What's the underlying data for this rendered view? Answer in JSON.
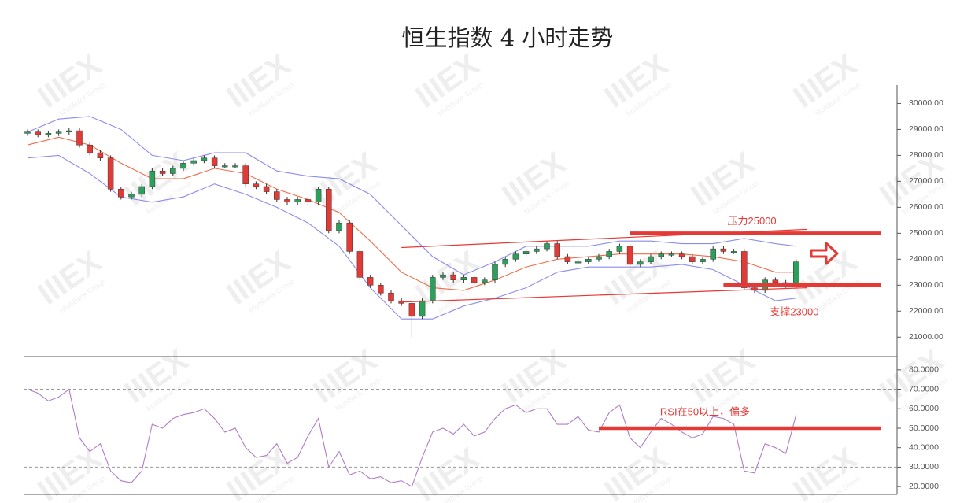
{
  "chart_data": [
    {
      "type": "candlestick",
      "title": "恒生指数 4 小时走势",
      "categories": [
        null,
        null,
        null,
        null,
        null,
        null,
        null,
        null,
        null,
        null,
        null,
        null,
        null,
        null,
        null,
        null,
        null,
        null,
        null,
        null,
        null,
        null,
        null,
        null,
        null,
        null,
        null,
        null,
        null,
        null,
        null,
        null,
        null,
        null,
        null,
        null,
        null,
        null,
        null,
        null,
        null,
        null,
        null,
        null,
        null,
        null,
        null,
        null,
        null,
        null,
        null,
        null,
        null,
        null,
        null,
        null,
        null,
        null,
        null,
        null,
        null,
        null,
        null,
        null,
        null,
        null,
        null,
        null,
        null,
        null,
        null,
        null,
        null,
        null,
        null
      ],
      "open": [
        28850,
        28900,
        28800,
        28850,
        28900,
        28950,
        28400,
        28100,
        27900,
        26700,
        26400,
        26500,
        26800,
        27400,
        27300,
        27500,
        27700,
        27800,
        27900,
        27600,
        27600,
        27600,
        26900,
        26800,
        26600,
        26300,
        26200,
        26300,
        26200,
        26700,
        25100,
        25400,
        24300,
        23300,
        23000,
        22700,
        22400,
        22300,
        21800,
        22400,
        23300,
        23400,
        23200,
        23300,
        23100,
        23200,
        23800,
        24000,
        24200,
        24300,
        24400,
        24600,
        24100,
        23900,
        23900,
        24000,
        24100,
        24300,
        24500,
        23800,
        23900,
        24100,
        24200,
        24200,
        24100,
        23900,
        24000,
        24400,
        24300,
        24300,
        22900,
        22800,
        23200,
        23100,
        23000
      ],
      "high": [
        29000,
        29000,
        28950,
        29000,
        29050,
        29050,
        28500,
        28200,
        28000,
        26800,
        26600,
        26900,
        27500,
        27500,
        27600,
        27800,
        27900,
        28000,
        28000,
        27700,
        27700,
        27700,
        27000,
        26900,
        26700,
        26400,
        26400,
        26400,
        26800,
        26800,
        25500,
        25500,
        24400,
        23400,
        23100,
        22800,
        22500,
        22400,
        22500,
        23400,
        23500,
        23500,
        23400,
        23400,
        23300,
        23900,
        24100,
        24300,
        24400,
        24500,
        24700,
        24700,
        24200,
        24000,
        24100,
        24200,
        24400,
        24600,
        24600,
        24000,
        24200,
        24300,
        24300,
        24300,
        24200,
        24100,
        24500,
        24500,
        24400,
        24400,
        23000,
        23300,
        23300,
        23200,
        24000
      ],
      "low": [
        28750,
        28700,
        28700,
        28750,
        28800,
        28300,
        28000,
        27800,
        26600,
        26300,
        26300,
        26400,
        26700,
        27200,
        27200,
        27400,
        27600,
        27700,
        27500,
        27500,
        27500,
        26800,
        26700,
        26500,
        26200,
        26100,
        26100,
        26100,
        26100,
        25000,
        25000,
        24200,
        23200,
        22900,
        22600,
        22300,
        22200,
        21000,
        21700,
        22300,
        23200,
        23100,
        23100,
        23000,
        23000,
        23100,
        23700,
        23900,
        24100,
        24200,
        24300,
        24000,
        23800,
        23800,
        23800,
        23900,
        24000,
        24200,
        23700,
        23700,
        23800,
        24000,
        24100,
        24000,
        23800,
        23800,
        23900,
        24200,
        24200,
        22800,
        22700,
        22700,
        23000,
        22900,
        22900
      ],
      "close": [
        28900,
        28800,
        28850,
        28900,
        28950,
        28400,
        28100,
        27900,
        26700,
        26400,
        26500,
        26800,
        27400,
        27300,
        27500,
        27700,
        27800,
        27900,
        27600,
        27600,
        27600,
        26900,
        26800,
        26600,
        26300,
        26200,
        26300,
        26200,
        26700,
        25100,
        25400,
        24300,
        23300,
        23000,
        22700,
        22400,
        22300,
        21800,
        22400,
        23300,
        23400,
        23200,
        23300,
        23100,
        23200,
        23800,
        24000,
        24200,
        24300,
        24400,
        24600,
        24100,
        23900,
        23900,
        24000,
        24100,
        24300,
        24500,
        23800,
        23900,
        24100,
        24200,
        24200,
        24100,
        23900,
        24000,
        24400,
        24300,
        24300,
        22900,
        22800,
        23200,
        23100,
        23000,
        23900
      ],
      "up_color": "#2ba05a",
      "down_color": "#e53935",
      "band_x": [
        0,
        3,
        6,
        9,
        12,
        15,
        18,
        21,
        24,
        27,
        30,
        33,
        36,
        39,
        42,
        45,
        48,
        51,
        54,
        57,
        60,
        63,
        66,
        69,
        72,
        74
      ],
      "bands": [
        {
          "color": "#8c8cee",
          "values": [
            28900,
            29400,
            29500,
            29000,
            28000,
            27800,
            28100,
            28100,
            27400,
            27200,
            27100,
            26500,
            25300,
            24100,
            23400,
            23900,
            24500,
            24500,
            24500,
            24700,
            24700,
            24600,
            24600,
            24800,
            24600,
            24500
          ]
        },
        {
          "color": "#ef6c4a",
          "values": [
            28400,
            28700,
            28400,
            27700,
            27100,
            27100,
            27500,
            27300,
            26700,
            26300,
            25800,
            24700,
            23500,
            22900,
            22800,
            23200,
            23700,
            24000,
            24100,
            24200,
            24200,
            24200,
            24100,
            23900,
            23500,
            23500
          ]
        },
        {
          "color": "#8c8cee",
          "values": [
            27900,
            28000,
            27300,
            26400,
            26200,
            26400,
            26900,
            26500,
            26000,
            25400,
            24500,
            22900,
            21700,
            21700,
            22200,
            22500,
            22900,
            23500,
            23700,
            23700,
            23700,
            23800,
            23600,
            23000,
            22400,
            22500
          ]
        }
      ],
      "trend_lines": [
        {
          "x": [
            36,
            75
          ],
          "values": [
            24450,
            25150
          ],
          "color": "#e53935"
        },
        {
          "x": [
            36,
            75
          ],
          "values": [
            22350,
            22900
          ],
          "color": "#e53935"
        }
      ],
      "reference_lines": [
        {
          "value": 25000,
          "label": "压力25000",
          "from": 58,
          "color": "#e53935"
        },
        {
          "value": 23000,
          "label": "支撑23000",
          "from": 67,
          "color": "#e53935"
        }
      ],
      "ylim": [
        20250,
        30650
      ],
      "yticks": [
        {
          "value": 21000,
          "label": "21000.00"
        },
        {
          "value": 22000,
          "label": "22000.00"
        },
        {
          "value": 23000,
          "label": "23000.00"
        },
        {
          "value": 24000,
          "label": "24000.00"
        },
        {
          "value": 25000,
          "label": "25000.00"
        },
        {
          "value": 26000,
          "label": "26000.00"
        },
        {
          "value": 27000,
          "label": "27000.00"
        },
        {
          "value": 28000,
          "label": "28000.00"
        },
        {
          "value": 29000,
          "label": "29000.00"
        },
        {
          "value": 30000,
          "label": "30000.00"
        }
      ],
      "watermark": {
        "logo": "IIIEX",
        "text": "MultiBank Group"
      }
    },
    {
      "type": "line",
      "color": "#b07cc6",
      "categories": [
        null,
        null,
        null,
        null,
        null,
        null,
        null,
        null,
        null,
        null,
        null,
        null,
        null,
        null,
        null,
        null,
        null,
        null,
        null,
        null,
        null,
        null,
        null,
        null,
        null,
        null,
        null,
        null,
        null,
        null,
        null,
        null,
        null,
        null,
        null,
        null,
        null,
        null,
        null,
        null,
        null,
        null,
        null,
        null,
        null,
        null,
        null,
        null,
        null,
        null,
        null,
        null,
        null,
        null,
        null,
        null,
        null,
        null,
        null,
        null,
        null,
        null,
        null,
        null,
        null,
        null,
        null,
        null,
        null,
        null,
        null,
        null,
        null,
        null,
        null
      ],
      "values": [
        70,
        68,
        64,
        66,
        70,
        45,
        38,
        42,
        28,
        23,
        22,
        28,
        52,
        50,
        55,
        57,
        58,
        60,
        55,
        48,
        50,
        40,
        35,
        36,
        42,
        32,
        35,
        46,
        55,
        30,
        38,
        26,
        28,
        24,
        25,
        22,
        23,
        20,
        35,
        48,
        50,
        47,
        52,
        46,
        48,
        55,
        60,
        62,
        58,
        60,
        60,
        52,
        52,
        56,
        49,
        48,
        58,
        62,
        45,
        40,
        48,
        55,
        52,
        48,
        45,
        47,
        56,
        55,
        52,
        28,
        27,
        42,
        40,
        37,
        57
      ],
      "levels": [
        30,
        70
      ],
      "reference_lines": [
        {
          "value": 50,
          "label": "RSI在50以上，偏多",
          "from": 55,
          "color": "#e53935"
        }
      ],
      "ylim": [
        16,
        86
      ],
      "yticks": [
        {
          "value": 20,
          "label": "20.0000"
        },
        {
          "value": 30,
          "label": "30.0000"
        },
        {
          "value": 40,
          "label": "40.0000"
        },
        {
          "value": 50,
          "label": "50.0000"
        },
        {
          "value": 60,
          "label": "60.0000"
        },
        {
          "value": 70,
          "label": "70.0000"
        },
        {
          "value": 80,
          "label": "80.0000"
        }
      ]
    }
  ]
}
